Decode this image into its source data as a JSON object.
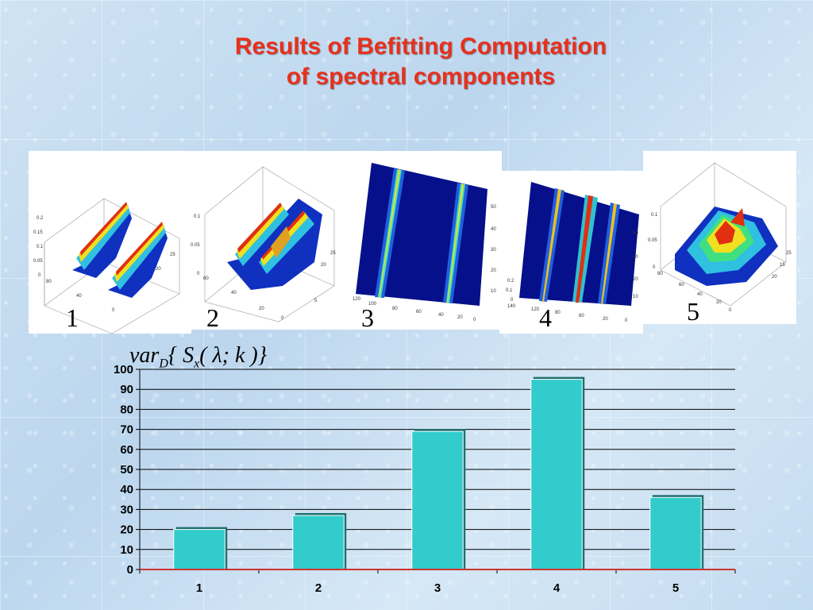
{
  "slide": {
    "title_line1": "Results of Befitting Computation",
    "title_line2": "of spectral components"
  },
  "panels": [
    {
      "label": "1"
    },
    {
      "label": "2"
    },
    {
      "label": "3"
    },
    {
      "label": "4"
    },
    {
      "label": "5"
    }
  ],
  "formula": {
    "prefix": "var",
    "sub": "D",
    "middle": "{ S",
    "sub2": "x",
    "suffix": "( λ; k )}"
  },
  "colors": {
    "title": "#e8301c",
    "bar": "#33cccc",
    "bar_edge": "#1f6f6f",
    "axis": "#cc3333"
  },
  "chart_data": {
    "type": "bar",
    "categories": [
      "1",
      "2",
      "3",
      "4",
      "5"
    ],
    "values": [
      20,
      27,
      69,
      95,
      36
    ],
    "ylim": [
      0,
      100
    ],
    "yticks": [
      "0",
      "10",
      "20",
      "30",
      "40",
      "50",
      "60",
      "70",
      "80",
      "90",
      "100"
    ],
    "grid": true,
    "title": "",
    "xlabel": "",
    "ylabel": ""
  }
}
